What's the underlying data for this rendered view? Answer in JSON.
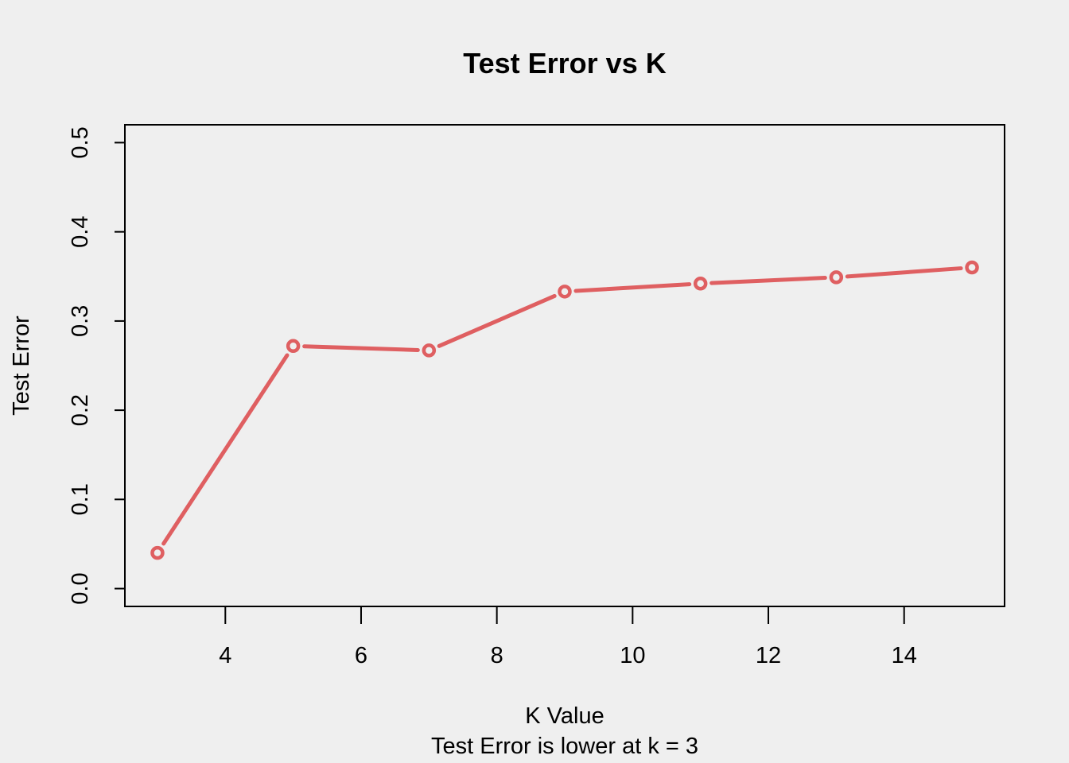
{
  "colors": {
    "background": "#efefef",
    "series": "#df5f61",
    "axis": "#000000"
  },
  "chart_data": {
    "type": "line",
    "title": "Test Error vs K",
    "xlabel": "K Value",
    "subtitle": "Test Error is lower at k = 3",
    "ylabel": "Test Error",
    "xlim": [
      2.52,
      15.48
    ],
    "ylim": [
      -0.02,
      0.52
    ],
    "x_ticks": [
      4,
      6,
      8,
      10,
      12,
      14
    ],
    "x_tick_labels": [
      "4",
      "6",
      "8",
      "10",
      "12",
      "14"
    ],
    "y_ticks": [
      0.0,
      0.1,
      0.2,
      0.3,
      0.4,
      0.5
    ],
    "y_tick_labels": [
      "0.0",
      "0.1",
      "0.2",
      "0.3",
      "0.4",
      "0.5"
    ],
    "x": [
      3,
      5,
      7,
      9,
      11,
      13,
      15
    ],
    "y": [
      0.04,
      0.272,
      0.267,
      0.333,
      0.342,
      0.349,
      0.36
    ],
    "style": "line-with-open-circles",
    "grid": false,
    "legend": "none"
  }
}
